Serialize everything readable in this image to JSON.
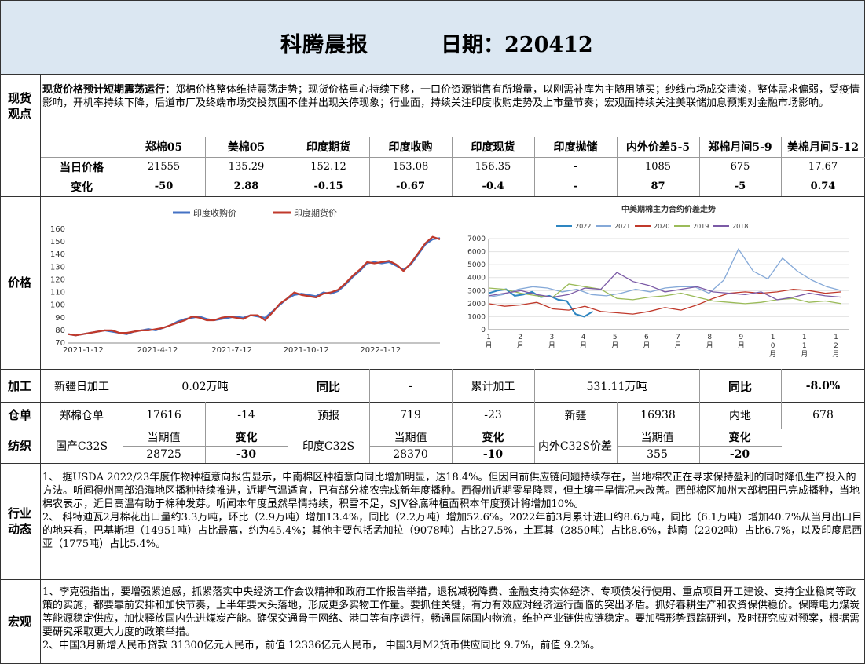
{
  "header": {
    "title": "科腾晨报",
    "date": "日期：220412"
  },
  "spot": {
    "label": "现货\n观点",
    "headline": "现货价格预计短期震荡运行：",
    "body": "郑棉价格整体维持震荡走势；现货价格重心持续下移，一口价资源销售有所增量，以刚需补库为主随用随买；纱线市场成交清淡，整体需求偏弱，受疫情影响，开机率持续下降，后道市厂及终端市场交投氛围不佳并出现关停现象；行业面，持续关注印度收购走势及上市量节奏；宏观面持续关注美联储加息预期对金融市场影响。"
  },
  "price_table": {
    "headers": [
      "郑棉05",
      "美棉05",
      "印度期货",
      "印度收购",
      "印度现货",
      "印度抛储",
      "内外价差5-5",
      "郑棉月间5-9",
      "美棉月间5-12"
    ],
    "row1_label": "当日价格",
    "row1": [
      "21555",
      "135.29",
      "152.12",
      "153.08",
      "156.35",
      "-",
      "1085",
      "675",
      "17.67"
    ],
    "row2_label": "变化",
    "row2": [
      "-50",
      "2.88",
      "-0.15",
      "-0.67",
      "-0.4",
      "-",
      "87",
      "-5",
      "0.74"
    ]
  },
  "price_label": "价格",
  "chart_data": [
    {
      "type": "line",
      "title": "",
      "series": [
        {
          "name": "印度收购价",
          "color": "#4472c4",
          "values": [
            77,
            76,
            77,
            78,
            79,
            80,
            79,
            78,
            77,
            79,
            80,
            81,
            80,
            82,
            84,
            87,
            89,
            90,
            91,
            89,
            88,
            89,
            90,
            91,
            90,
            92,
            91,
            90,
            95,
            100,
            105,
            108,
            109,
            108,
            107,
            110,
            109,
            111,
            116,
            122,
            127,
            133,
            134,
            133,
            134,
            131,
            128,
            132,
            140,
            148,
            152,
            153
          ]
        },
        {
          "name": "印度期货价",
          "color": "#c0392b",
          "values": [
            77,
            76,
            77,
            78,
            79,
            80,
            80,
            78,
            78,
            79,
            80,
            80,
            81,
            82,
            84,
            86,
            88,
            91,
            90,
            88,
            88,
            90,
            91,
            90,
            89,
            92,
            92,
            88,
            94,
            101,
            105,
            110,
            108,
            107,
            106,
            109,
            110,
            112,
            117,
            123,
            128,
            134,
            133,
            134,
            135,
            132,
            127,
            133,
            141,
            149,
            154,
            152
          ]
        }
      ],
      "xticks": [
        "2021-1-12",
        "2021-4-12",
        "2021-7-12",
        "2021-10-12",
        "2022-1-12"
      ],
      "ylim": [
        70,
        160
      ],
      "yticks": [
        70,
        80,
        90,
        100,
        110,
        120,
        130,
        140,
        150,
        160
      ],
      "legend": "top"
    },
    {
      "type": "line",
      "title": "中美期棉主力合约价差走势",
      "series": [
        {
          "name": "2022",
          "color": "#2e86c1",
          "values": [
            2800,
            3000,
            3100,
            2600,
            2700,
            2900,
            2500,
            2600,
            2300,
            2200,
            1200,
            1000,
            1400
          ]
        },
        {
          "name": "2021",
          "color": "#85a9d8",
          "values": [
            2500,
            2700,
            3100,
            3300,
            3200,
            2900,
            3100,
            2700,
            2600,
            2800,
            3100,
            2900,
            3200,
            3300,
            3300,
            2800,
            3800,
            6200,
            4500,
            3900,
            5500,
            4500,
            3800,
            3300,
            3000
          ]
        },
        {
          "name": "2020",
          "color": "#c0392b",
          "values": [
            2000,
            1800,
            1900,
            2100,
            1600,
            1500,
            1800,
            1400,
            1300,
            1200,
            1400,
            1700,
            1500,
            1900,
            2400,
            2800,
            2900,
            2800,
            2900,
            3100,
            3000,
            2800,
            2900
          ]
        },
        {
          "name": "2019",
          "color": "#9bbb59",
          "values": [
            3200,
            3100,
            2800,
            2600,
            2500,
            3500,
            3300,
            3100,
            2400,
            2300,
            2500,
            2600,
            2800,
            2500,
            2200,
            2100,
            2000,
            2100,
            2300,
            2400,
            2100,
            2200,
            2000
          ]
        },
        {
          "name": "2018",
          "color": "#7b5aa6",
          "values": [
            2600,
            2800,
            3000,
            2700,
            2500,
            2700,
            3200,
            3100,
            4400,
            3700,
            3400,
            2900,
            3100,
            3300,
            2900,
            2800,
            2700,
            2900,
            2300,
            2500,
            2800,
            2600,
            2500
          ]
        }
      ],
      "xticks": [
        "1\n月",
        "2\n月",
        "3\n月",
        "4\n月",
        "5\n月",
        "6\n月",
        "7\n月",
        "8\n月",
        "9\n月",
        "1\n0\n月",
        "1\n1\n月",
        "1\n2\n月"
      ],
      "ylim": [
        0,
        7000
      ],
      "yticks": [
        0,
        1000,
        2000,
        3000,
        4000,
        5000,
        6000,
        7000
      ],
      "legend": "top"
    }
  ],
  "processing": {
    "label": "加工",
    "xj_label": "新疆日加工",
    "xj_value": "0.02万吨",
    "yoy_label": "同比",
    "yoy_value": "-",
    "cum_label": "累计加工",
    "cum_value": "531.11万吨",
    "yoy2_label": "同比",
    "yoy2_value": "-8.0%"
  },
  "warehouse": {
    "label": "仓单",
    "c1": "郑棉仓单",
    "c2": "17616",
    "c3": "-14",
    "c4": "预报",
    "c5": "719",
    "c6": "-23",
    "c7": "新疆",
    "c8": "16938",
    "c9": "内地",
    "c10": "678"
  },
  "yarn": {
    "label": "纺织",
    "g1": {
      "name": "国产C32S",
      "h1": "当期值",
      "h2": "变化",
      "v1": "28725",
      "v2": "-30"
    },
    "g2": {
      "name": "印度C32S",
      "h1": "当期值",
      "h2": "变化",
      "v1": "28370",
      "v2": "-10"
    },
    "g3": {
      "name": "内外C32S价差",
      "h1": "当期值",
      "h2": "变化",
      "v1": "355",
      "v2": "-20"
    }
  },
  "industry": {
    "label": "行业\n动态",
    "text": "1、 据USDA 2022/23年度作物种植意向报告显示，中南棉区种植意向同比增加明显，达18.4%。但因目前供应链问题持续存在，当地棉农正在寻求保持盈利的同时降低生产投入的方法。听闻得州南部沿海地区播种持续推进，近期气温适宜，已有部分棉农完成新年度播种。西得州近期零星降雨，但土壤干旱情况未改善。西部棉区加州大部棉田已完成播种，当地棉农表示，近日高温有助于棉种发芽。听闻本年度虽然旱情持续，积雪不足，SJV谷底种植面积本年度预计将增加10%。\n2、 科特迪瓦2月棉花出口量约3.3万吨，环比（2.9万吨）增加13.4%，同比（2.2万吨）增加52.6%。2022年前3月累计进口约8.6万吨，同比（6.1万吨）增加40.7%从当月出口目的地来看，巴基斯坦（14951吨）占比最高，约为45.4%；其他主要包括孟加拉（9078吨）占比27.5%，土耳其（2850吨）占比8.6%，越南（2202吨）占比6.7%，以及印度尼西亚（1775吨）占比5.4%。"
  },
  "macro": {
    "label": "宏观",
    "text": "1、李克强指出，要增强紧迫感，抓紧落实中央经济工作会议精神和政府工作报告举措，退税减税降费、金融支持实体经济、专项债发行使用、重点项目开工建设、支持企业稳岗等政策的实施，都要靠前安排和加快节奏，上半年要大头落地，形成更多实物工作量。要抓住关键，有力有效应对经济运行面临的突出矛盾。抓好春耕生产和农资保供稳价。保障电力煤炭等能源稳定供应，加快释放国内先进煤炭产能。确保交通骨干网络、港口等有序运行，畅通国际国内物流，维护产业链供应链稳定。要加强形势跟踪研判，及时研究应对预案，根据需要研究采取更大力度的政策举措。\n2、中国3月新增人民币贷款 31300亿元人民币，前值 12336亿元人民币， 中国3月M2货币供应同比 9.7%，前值 9.2%。"
  }
}
